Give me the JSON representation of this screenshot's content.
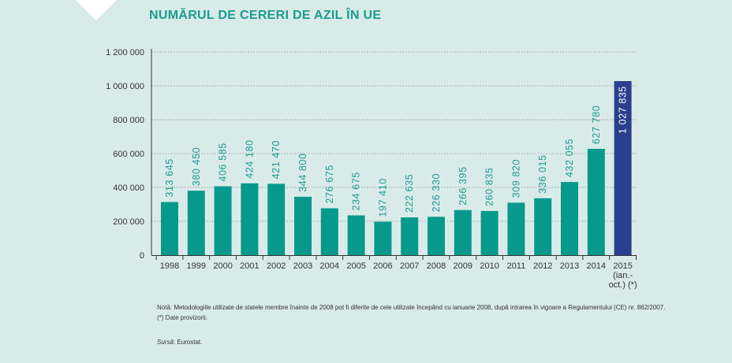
{
  "title": "NUMĂRUL DE CERERI DE AZIL ÎN UE",
  "notes": {
    "note": "Notă: Metodologiile utilizate de statele membre înainte de 2008 pot fi diferite de cele utilizate începând cu ianuarie 2008, după intrarea în vigoare a Regulamentului (CE) nr. 862/2007.",
    "provisional": "(*) Date provizorii."
  },
  "source": {
    "label": "Sursă",
    "text": ": Eurostat."
  },
  "colors": {
    "bar": "#079a8c",
    "highlight_bar": "#2a3f8d",
    "label": "#1a9c8f"
  },
  "chart_data": {
    "type": "bar",
    "title": "NUMĂRUL DE CERERI DE AZIL ÎN UE",
    "xlabel": "",
    "ylabel": "",
    "ylim": [
      0,
      1200000
    ],
    "yticks": [
      0,
      200000,
      400000,
      600000,
      800000,
      1000000,
      1200000
    ],
    "ytick_labels": [
      "0",
      "200 000",
      "400 000",
      "600 000",
      "800 000",
      "1 000 000",
      "1 200 000"
    ],
    "grid": true,
    "categories": [
      "1998",
      "1999",
      "2000",
      "2001",
      "2002",
      "2003",
      "2004",
      "2005",
      "2006",
      "2007",
      "2008",
      "2009",
      "2010",
      "2011",
      "2012",
      "2013",
      "2014",
      "2015\n(ian.-\noct.) (*)"
    ],
    "values": [
      313645,
      380450,
      406585,
      424180,
      421470,
      344800,
      276675,
      234675,
      197410,
      222635,
      226330,
      266395,
      260835,
      309820,
      336015,
      432055,
      627780,
      1027835
    ],
    "data_labels": [
      "313 645",
      "380 450",
      "406 585",
      "424 180",
      "421 470",
      "344 800",
      "276 675",
      "234 675",
      "197 410",
      "222 635",
      "226 330",
      "266 395",
      "260 835",
      "309 820",
      "336 015",
      "432 055",
      "627 780",
      "1 027 835"
    ],
    "highlight_index": 17
  }
}
